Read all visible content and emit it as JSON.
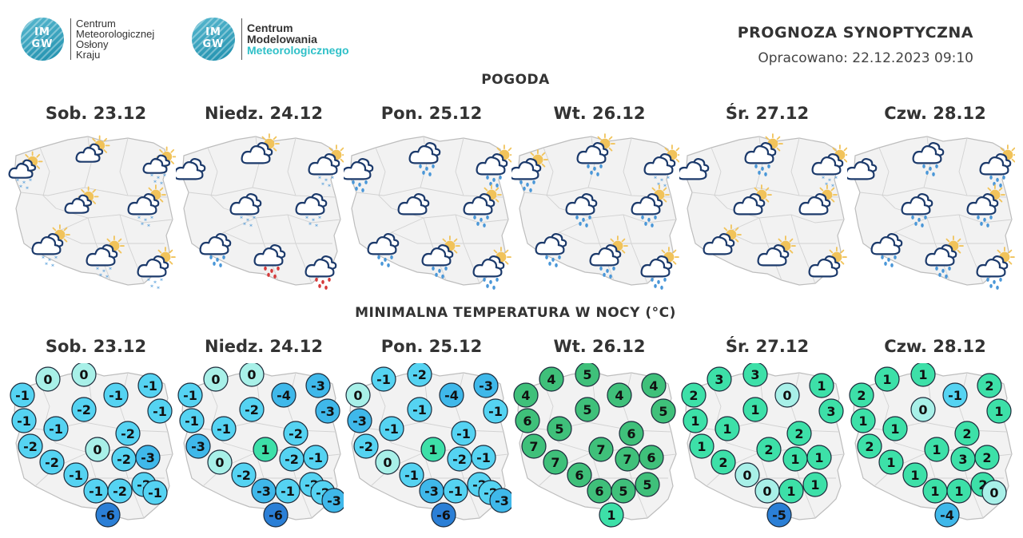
{
  "logos": [
    {
      "mark": "IM\nGW",
      "lines": [
        "Centrum",
        "Meteorologicznej",
        "Osłony",
        "Kraju"
      ]
    },
    {
      "mark": "IM\nGW",
      "lines": [
        "Centrum",
        "Modelowania",
        "Meteorologicznego"
      ]
    }
  ],
  "header": {
    "title": "PROGNOZA SYNOPTYCZNA",
    "issued": "Opracowano: 22.12.2023 09:10"
  },
  "sections": {
    "weather": "POGODA",
    "temperature": "MINIMALNA TEMPERATURA W NOCY (°C)"
  },
  "days": [
    "Sob. 23.12",
    "Niedz. 24.12",
    "Pon. 25.12",
    "Wt. 26.12",
    "Śr. 27.12",
    "Czw. 28.12"
  ],
  "colors": {
    "temp_minus6": "#2b7fd6",
    "temp_cold": "#3fb8ea",
    "temp_light": "#55d3f2",
    "temp_zero": "#a8f0e8",
    "temp_mild": "#3de0a8",
    "temp_warm": "#3fc07a",
    "cloud_outline": "#1c3a6b",
    "sun": "#f1c35a",
    "rain": "#4a97d8",
    "snow": "#4a97d8",
    "freezing_rain": "#d63a3a"
  },
  "weather_maps": [
    {
      "day": "Sob. 23.12",
      "symbols": [
        {
          "sym": "pc-snow",
          "sun": true,
          "size": "s"
        },
        {
          "sym": "pc",
          "sun": true,
          "size": "s"
        },
        {
          "sym": "pc-snow",
          "sun": true,
          "size": "s"
        },
        {
          "sym": "pc",
          "sun": true,
          "size": "s"
        },
        {
          "sym": "pc-snow",
          "sun": true,
          "size": "m"
        },
        {
          "sym": "pc-snow",
          "sun": true,
          "size": "m"
        },
        {
          "sym": "pc-snow",
          "sun": true,
          "size": "m"
        },
        {
          "sym": "pc-snow",
          "sun": true,
          "size": "m"
        }
      ]
    },
    {
      "day": "Niedz. 24.12",
      "symbols": [
        {
          "sym": "cloud",
          "size": "m"
        },
        {
          "sym": "pc",
          "sun": true,
          "size": "m"
        },
        {
          "sym": "pc-snow",
          "sun": true,
          "size": "m"
        },
        {
          "sym": "cloud-snow",
          "size": "m"
        },
        {
          "sym": "cloud-snow",
          "size": "m"
        },
        {
          "sym": "cloud-rain",
          "size": "m"
        },
        {
          "sym": "cloud-frz",
          "size": "m"
        },
        {
          "sym": "cloud-frz",
          "size": "m"
        }
      ]
    },
    {
      "day": "Pon. 25.12",
      "symbols": [
        {
          "sym": "cloud-rain",
          "size": "m"
        },
        {
          "sym": "cloud-rain",
          "size": "m"
        },
        {
          "sym": "pc-rain",
          "sun": true,
          "size": "m"
        },
        {
          "sym": "cloud",
          "size": "m"
        },
        {
          "sym": "pc-rain",
          "sun": true,
          "size": "m"
        },
        {
          "sym": "cloud-rain",
          "size": "m"
        },
        {
          "sym": "pc-rain",
          "sun": true,
          "size": "m"
        },
        {
          "sym": "pc-rain",
          "sun": true,
          "size": "m"
        }
      ]
    },
    {
      "day": "Wt. 26.12",
      "symbols": [
        {
          "sym": "pc-rain",
          "sun": true,
          "size": "m"
        },
        {
          "sym": "pc-rain",
          "sun": true,
          "size": "m"
        },
        {
          "sym": "pc-snow",
          "sun": true,
          "size": "m"
        },
        {
          "sym": "cloud-rain",
          "size": "m"
        },
        {
          "sym": "pc-rain",
          "sun": true,
          "size": "m"
        },
        {
          "sym": "cloud-rain",
          "size": "m"
        },
        {
          "sym": "pc-rain",
          "sun": true,
          "size": "m"
        },
        {
          "sym": "pc-rain",
          "sun": true,
          "size": "m"
        }
      ]
    },
    {
      "day": "Śr. 27.12",
      "symbols": [
        {
          "sym": "cloud",
          "size": "m"
        },
        {
          "sym": "pc-rain",
          "sun": true,
          "size": "m"
        },
        {
          "sym": "pc-snow",
          "sun": true,
          "size": "m"
        },
        {
          "sym": "pc",
          "sun": true,
          "size": "m"
        },
        {
          "sym": "pc",
          "sun": true,
          "size": "m"
        },
        {
          "sym": "pc",
          "sun": true,
          "size": "m"
        },
        {
          "sym": "pc",
          "sun": true,
          "size": "m"
        },
        {
          "sym": "pc",
          "sun": true,
          "size": "m"
        }
      ]
    },
    {
      "day": "Czw. 28.12",
      "symbols": [
        {
          "sym": "cloud",
          "size": "m"
        },
        {
          "sym": "cloud-rain",
          "size": "m"
        },
        {
          "sym": "pc-rain",
          "sun": true,
          "size": "m"
        },
        {
          "sym": "cloud-rain",
          "size": "m"
        },
        {
          "sym": "pc-rain",
          "sun": true,
          "size": "m"
        },
        {
          "sym": "cloud-rain",
          "size": "m"
        },
        {
          "sym": "pc-rain",
          "sun": true,
          "size": "m"
        },
        {
          "sym": "pc-rain",
          "sun": true,
          "size": "m"
        }
      ]
    }
  ],
  "temperature_maps": [
    {
      "day": "Sob. 23.12",
      "values": [
        0,
        0,
        -1,
        -1,
        -1,
        -2,
        -1,
        -1,
        -1,
        -2,
        -2,
        0,
        -2,
        -3,
        -2,
        -1,
        -1,
        -2,
        -2,
        -1,
        -6
      ]
    },
    {
      "day": "Niedz. 24.12",
      "values": [
        0,
        0,
        -1,
        -4,
        -3,
        -2,
        -3,
        -1,
        -1,
        -2,
        -3,
        1,
        -2,
        -1,
        0,
        -2,
        -3,
        -1,
        -2,
        -2,
        -3,
        -6
      ]
    },
    {
      "day": "Pon. 25.12",
      "values": [
        -1,
        -2,
        0,
        -4,
        -3,
        -1,
        -1,
        -3,
        -1,
        -1,
        -2,
        1,
        -2,
        -1,
        0,
        -1,
        -3,
        -1,
        -2,
        -2,
        -3,
        -6
      ]
    },
    {
      "day": "Wt. 26.12",
      "values": [
        4,
        5,
        4,
        4,
        4,
        5,
        5,
        6,
        5,
        6,
        7,
        7,
        7,
        6,
        7,
        6,
        6,
        5,
        5,
        1
      ]
    },
    {
      "day": "Śr. 27.12",
      "values": [
        3,
        3,
        2,
        0,
        1,
        1,
        3,
        1,
        1,
        2,
        1,
        2,
        1,
        1,
        2,
        0,
        0,
        1,
        1,
        -5
      ]
    },
    {
      "day": "Czw. 28.12",
      "values": [
        1,
        1,
        2,
        -1,
        2,
        0,
        1,
        1,
        1,
        2,
        2,
        1,
        3,
        2,
        1,
        1,
        1,
        1,
        2,
        0,
        -4
      ]
    }
  ]
}
